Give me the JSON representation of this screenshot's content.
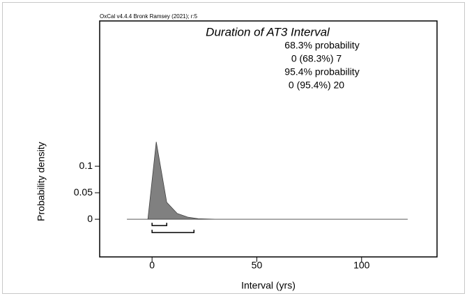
{
  "chart_data": {
    "type": "area",
    "credit": "OxCal v4.4.4 Bronk Ramsey (2021); r:5",
    "title": "Duration of AT3 Interval",
    "xlabel": "Interval (yrs)",
    "ylabel": "Probability density",
    "x": [
      -12,
      -2,
      2,
      7,
      12,
      17,
      22,
      30,
      122
    ],
    "values": [
      0,
      0,
      0.146,
      0.032,
      0.011,
      0.004,
      0.001,
      0,
      0
    ],
    "color": "#808080",
    "xlim": [
      -25,
      136
    ],
    "ylim": [
      -0.071,
      0.374
    ],
    "xticks": [
      0,
      50,
      100
    ],
    "yticks": [
      0,
      0.05,
      0.1
    ],
    "ranges": [
      {
        "heading": "68.3% probability",
        "label": "0 (68.3%) 7",
        "from": 0,
        "to": 7
      },
      {
        "heading": "95.4% probability",
        "label": "0 (95.4%) 20",
        "from": 0,
        "to": 20
      }
    ]
  }
}
